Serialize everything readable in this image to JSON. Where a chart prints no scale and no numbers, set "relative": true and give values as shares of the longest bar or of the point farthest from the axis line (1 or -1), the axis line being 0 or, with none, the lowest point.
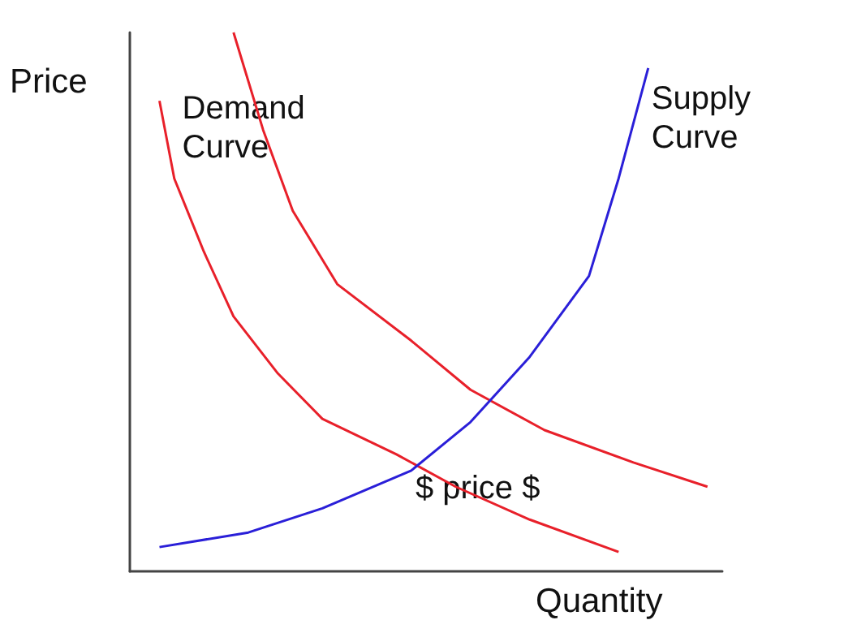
{
  "chart_data": {
    "type": "line",
    "relative": true,
    "xlabel": "Quantity",
    "ylabel": "Price",
    "grid": false,
    "marker": "none",
    "line_style": "solid",
    "annotations": [
      "$ price $"
    ],
    "categories": [
      null,
      null,
      null,
      null,
      null,
      null,
      null,
      null,
      null,
      null,
      null,
      null,
      null,
      null,
      null,
      null,
      null,
      null,
      null,
      null,
      null,
      null,
      null,
      null,
      null,
      null,
      null,
      null,
      null,
      null,
      null,
      null,
      null,
      null,
      null,
      null,
      null,
      null,
      null,
      null,
      null
    ],
    "series": [
      {
        "name": "Demand Curve",
        "color": "#e8202a",
        "values": [
          null,
          null,
          0.873,
          0.729,
          null,
          0.593,
          null,
          0.473,
          null,
          null,
          0.367,
          null,
          null,
          0.283,
          null,
          null,
          null,
          null,
          0.217,
          null,
          null,
          null,
          0.157,
          null,
          null,
          null,
          null,
          0.096,
          null,
          null,
          null,
          null,
          null,
          0.036,
          null,
          null,
          null,
          null,
          null,
          null,
          null
        ]
      },
      {
        "color": "#e8202a",
        "values": [
          null,
          null,
          null,
          null,
          null,
          null,
          null,
          1.0,
          null,
          0.819,
          null,
          0.669,
          null,
          null,
          0.533,
          null,
          null,
          null,
          null,
          0.428,
          null,
          null,
          null,
          0.337,
          null,
          null,
          null,
          null,
          0.262,
          null,
          null,
          null,
          null,
          null,
          0.202,
          null,
          null,
          null,
          null,
          0.157,
          null
        ]
      },
      {
        "name": "Supply Curve",
        "color": "#2a1fd8",
        "values": [
          null,
          null,
          0.045,
          null,
          null,
          null,
          null,
          null,
          0.072,
          null,
          null,
          null,
          null,
          0.117,
          null,
          null,
          null,
          null,
          null,
          0.187,
          null,
          null,
          null,
          0.277,
          null,
          null,
          null,
          0.398,
          null,
          null,
          null,
          0.548,
          null,
          0.729,
          null,
          0.934,
          null,
          null,
          null,
          null,
          null
        ]
      }
    ]
  }
}
